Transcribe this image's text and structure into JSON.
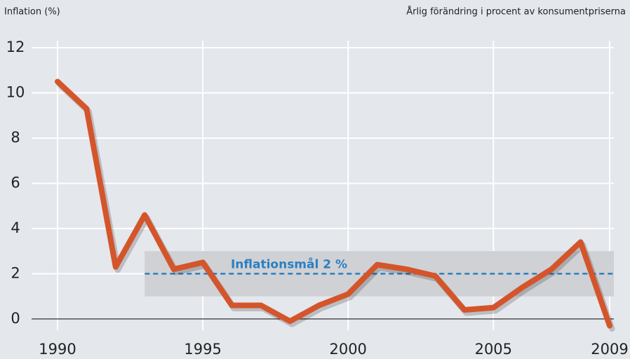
{
  "chart_data": {
    "type": "line",
    "y_label": "Inflation (%)",
    "subtitle": "Årlig förändring i procent av konsumentpriserna",
    "x": [
      1990,
      1991,
      1992,
      1993,
      1994,
      1995,
      1996,
      1997,
      1998,
      1999,
      2000,
      2001,
      2002,
      2003,
      2004,
      2005,
      2006,
      2007,
      2008,
      2009
    ],
    "series": [
      {
        "name": "Inflation",
        "color": "#d4552b",
        "values": [
          10.5,
          9.3,
          2.3,
          4.6,
          2.2,
          2.5,
          0.6,
          0.6,
          -0.1,
          0.6,
          1.1,
          2.4,
          2.2,
          1.9,
          0.4,
          0.5,
          1.4,
          2.2,
          3.4,
          -0.3
        ]
      }
    ],
    "band": {
      "from": 1993,
      "range": [
        1,
        3
      ],
      "color": "#cfd1d5"
    },
    "target": {
      "value": 2,
      "label": "Inflationsmål 2 %",
      "color": "#2a7fc1"
    },
    "xlim": [
      1990,
      2009
    ],
    "xticks": [
      1990,
      1995,
      2000,
      2005,
      2009
    ],
    "ylim": [
      -0.5,
      12
    ],
    "yticks": [
      0,
      2,
      4,
      6,
      8,
      10,
      12
    ],
    "grid": true
  }
}
